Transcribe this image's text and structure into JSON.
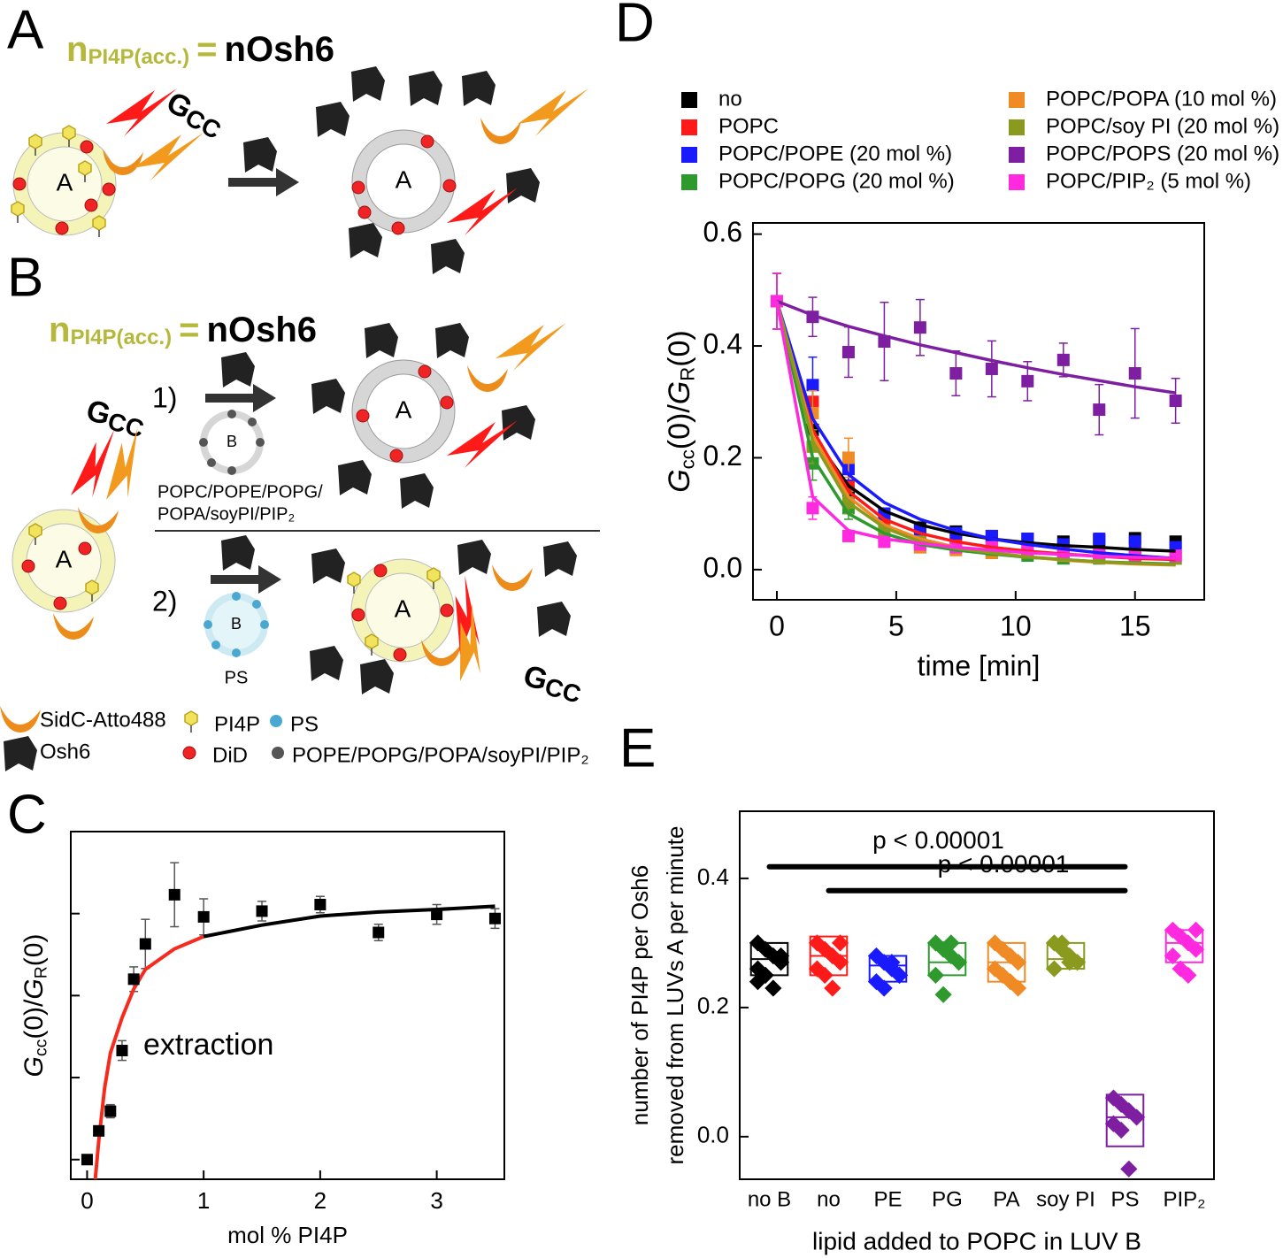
{
  "diagram": {
    "panel_labels": [
      "A",
      "B",
      "C",
      "D",
      "E"
    ],
    "equation": {
      "n": "n",
      "sub": "PI4P(acc.)",
      "eq": "=",
      "rhs": "nOsh6"
    },
    "gcc": {
      "g": "G",
      "sub": "CC"
    },
    "vesicle_a": "A",
    "vesicle_b": "B",
    "step_1": "1)",
    "step_2": "2)",
    "lipids_b": [
      "POPC/POPE/POPG/",
      "POPA/soyPI/PIP₂"
    ],
    "ps": "PS",
    "legend": [
      "SidC-Atto488",
      "Osh6",
      "PI4P",
      "PS",
      "DiD",
      "POPE/POPG/POPA/soyPI/PIP₂"
    ]
  },
  "chart_data": [
    {
      "type": "scatter",
      "xlabel": "mol % PI4P",
      "ylabel": {
        "g1": "G",
        "s1": "cc",
        "mid": "(0)/",
        "g2": "G",
        "s2": "R",
        "end": "(0)"
      },
      "xlim": [
        -0.14,
        3.58
      ],
      "ylim": [
        -0.024,
        0.4
      ],
      "xticks": [
        0,
        1,
        2,
        3
      ],
      "yticks": [
        0,
        0.1,
        0.2,
        0.3
      ],
      "ytick_labels": false,
      "x": [
        0,
        0.1,
        0.2,
        0.3,
        0.4,
        0.5,
        0.75,
        1,
        1.5,
        2,
        2.5,
        3,
        3.5
      ],
      "values": [
        0.0,
        0.035,
        0.059,
        0.133,
        0.22,
        0.263,
        0.323,
        0.296,
        0.303,
        0.311,
        0.277,
        0.299,
        0.294
      ],
      "errors": [
        0.003,
        0.004,
        0.008,
        0.012,
        0.015,
        0.03,
        0.039,
        0.022,
        0.012,
        0.01,
        0.01,
        0.012,
        0.012
      ],
      "color": "#000000",
      "fits": [
        {
          "color": "#f42b1d",
          "x": [
            0.07,
            0.1,
            0.15,
            0.2,
            0.3,
            0.4,
            0.5,
            0.75,
            1
          ],
          "values": [
            -0.024,
            0.023,
            0.087,
            0.13,
            0.173,
            0.208,
            0.232,
            0.257,
            0.272
          ]
        },
        {
          "color": "#000000",
          "x": [
            1,
            1.5,
            2,
            2.5,
            3,
            3.5
          ],
          "values": [
            0.272,
            0.286,
            0.297,
            0.302,
            0.305,
            0.309
          ]
        }
      ],
      "annotation": {
        "text": "extraction",
        "color": "#f42b1d"
      }
    },
    {
      "type": "line",
      "xlabel": "time [min]",
      "ylabel": {
        "g1": "G",
        "s1": "cc",
        "mid": "(0)/",
        "g2": "G",
        "s2": "R",
        "end": "(0)"
      },
      "xlim": [
        -1,
        17.9
      ],
      "ylim": [
        -0.054,
        0.62
      ],
      "xticks": [
        0,
        5,
        10,
        15
      ],
      "yticks": [
        {
          "value": 0,
          "label": "0.0"
        },
        0.2,
        0.4,
        0.6
      ],
      "x": [
        0,
        1.5,
        3,
        4.5,
        6,
        7.5,
        9,
        10.5,
        12,
        13.5,
        15,
        16.7
      ],
      "series": [
        {
          "name": "no",
          "color": "#000000",
          "values": [
            0.48,
            0.25,
            0.14,
            0.1,
            0.075,
            0.068,
            0.06,
            0.055,
            0.05,
            0.052,
            0.056,
            0.05
          ],
          "errors": [
            0.05,
            0.03,
            0.02,
            0.01,
            0.01,
            0.008,
            0.008,
            0.008,
            0.008,
            0.01,
            0.01,
            0.008
          ],
          "fit": [
            0.48,
            0.24,
            0.15,
            0.105,
            0.08,
            0.065,
            0.055,
            0.048,
            0.043,
            0.04,
            0.036,
            0.033
          ]
        },
        {
          "name": "POPC",
          "color": "#ff1a1a",
          "values": [
            0.48,
            0.3,
            0.15,
            0.08,
            0.05,
            0.045,
            0.04,
            0.04,
            0.03,
            0.03,
            0.03,
            0.03
          ],
          "errors": [
            0.05,
            0.03,
            0.02,
            0.01,
            0.008,
            0.008,
            0.008,
            0.008,
            0.006,
            0.006,
            0.006,
            0.006
          ],
          "fit": [
            0.48,
            0.25,
            0.14,
            0.09,
            0.065,
            0.05,
            0.04,
            0.033,
            0.028,
            0.024,
            0.02,
            0.018
          ]
        },
        {
          "name": "POPC/POPE (20 mol %)",
          "color": "#1a1aff",
          "values": [
            0.48,
            0.33,
            0.18,
            0.1,
            0.07,
            0.065,
            0.06,
            0.055,
            0.045,
            0.055,
            0.05,
            0.04
          ],
          "errors": [
            0.05,
            0.05,
            0.02,
            0.01,
            0.01,
            0.008,
            0.008,
            0.008,
            0.008,
            0.01,
            0.01,
            0.008
          ],
          "fit": [
            0.48,
            0.27,
            0.17,
            0.12,
            0.09,
            0.07,
            0.055,
            0.045,
            0.037,
            0.03,
            0.025,
            0.02
          ]
        },
        {
          "name": "POPC/POPG (20 mol %)",
          "color": "#2e9a2e",
          "values": [
            0.48,
            0.19,
            0.11,
            0.06,
            0.04,
            0.04,
            0.03,
            0.025,
            0.02,
            0.02,
            0.02,
            0.02
          ],
          "errors": [
            0.05,
            0.03,
            0.02,
            0.01,
            0.008,
            0.006,
            0.006,
            0.006,
            0.006,
            0.006,
            0.006,
            0.006
          ],
          "fit": [
            0.48,
            0.2,
            0.1,
            0.065,
            0.045,
            0.035,
            0.028,
            0.022,
            0.018,
            0.014,
            0.012,
            0.01
          ]
        },
        {
          "name": "POPC/POPA (10 mol %)",
          "color": "#f08a24",
          "values": [
            0.48,
            0.28,
            0.2,
            0.05,
            0.04,
            0.035,
            0.03,
            0.03,
            0.025,
            0.025,
            0.02,
            0.02
          ],
          "errors": [
            0.05,
            0.04,
            0.035,
            0.01,
            0.008,
            0.006,
            0.006,
            0.006,
            0.006,
            0.006,
            0.006,
            0.006
          ],
          "fit": [
            0.48,
            0.24,
            0.13,
            0.08,
            0.055,
            0.04,
            0.03,
            0.023,
            0.017,
            0.013,
            0.01,
            0.008
          ]
        },
        {
          "name": "POPC/soy PI (20 mol %)",
          "color": "#8a9a1e",
          "values": [
            0.48,
            0.22,
            0.12,
            0.07,
            0.05,
            0.04,
            0.035,
            0.03,
            0.025,
            0.025,
            0.02,
            0.02
          ],
          "errors": [
            0.05,
            0.03,
            0.02,
            0.01,
            0.008,
            0.006,
            0.006,
            0.006,
            0.006,
            0.006,
            0.006,
            0.006
          ],
          "fit": [
            0.48,
            0.23,
            0.12,
            0.075,
            0.05,
            0.038,
            0.03,
            0.023,
            0.018,
            0.014,
            0.011,
            0.009
          ]
        },
        {
          "name": "POPC/POPS (20 mol %)",
          "color": "#7d1fa0",
          "values": [
            0.48,
            0.452,
            0.389,
            0.408,
            0.433,
            0.351,
            0.359,
            0.337,
            0.375,
            0.286,
            0.351,
            0.302
          ],
          "errors": [
            0.05,
            0.035,
            0.045,
            0.07,
            0.05,
            0.04,
            0.05,
            0.035,
            0.03,
            0.045,
            0.08,
            0.04
          ],
          "fit": [
            0.48,
            0.455,
            0.435,
            0.418,
            0.402,
            0.388,
            0.374,
            0.361,
            0.349,
            0.338,
            0.327,
            0.316
          ]
        },
        {
          "name": "POPC/PIP₂ (5 mol %)",
          "color": "#ff2ae0",
          "values": [
            0.48,
            0.11,
            0.06,
            0.05,
            0.045,
            0.04,
            0.04,
            0.035,
            0.03,
            0.03,
            0.025,
            0.025
          ],
          "errors": [
            0.05,
            0.02,
            0.008,
            0.006,
            0.006,
            0.006,
            0.006,
            0.006,
            0.006,
            0.006,
            0.006,
            0.006
          ],
          "fit": [
            0.48,
            0.13,
            0.07,
            0.055,
            0.047,
            0.04,
            0.035,
            0.03,
            0.027,
            0.024,
            0.022,
            0.02
          ]
        }
      ]
    },
    {
      "type": "box",
      "xlabel": "lipid added to POPC in LUV B",
      "ylabel": [
        "number of PI4P per Osh6",
        "removed from LUVs A per minute"
      ],
      "ylim": [
        -0.066,
        0.504
      ],
      "yticks": [
        {
          "value": 0,
          "label": "0.0"
        },
        0.2,
        0.4
      ],
      "categories": [
        "no B",
        "no",
        "PE",
        "PG",
        "PA",
        "soy PI",
        "PS",
        "PIP₂"
      ],
      "boxes": [
        {
          "color": "#000000",
          "values": [
            0.3,
            0.29,
            0.28,
            0.27,
            0.26,
            0.25,
            0.23,
            0.28,
            0.24
          ],
          "q1": 0.25,
          "median": 0.275,
          "q3": 0.3
        },
        {
          "color": "#ff1a1a",
          "values": [
            0.3,
            0.29,
            0.28,
            0.3,
            0.26,
            0.25,
            0.23,
            0.27
          ],
          "q1": 0.25,
          "median": 0.28,
          "q3": 0.31
        },
        {
          "color": "#1a1aff",
          "values": [
            0.28,
            0.27,
            0.26,
            0.25,
            0.24,
            0.23,
            0.27,
            0.25
          ],
          "q1": 0.24,
          "median": 0.265,
          "q3": 0.28
        },
        {
          "color": "#2e9a2e",
          "values": [
            0.3,
            0.29,
            0.28,
            0.27,
            0.25,
            0.22,
            0.3
          ],
          "q1": 0.25,
          "median": 0.27,
          "q3": 0.3
        },
        {
          "color": "#f08a24",
          "values": [
            0.3,
            0.29,
            0.28,
            0.27,
            0.26,
            0.25,
            0.24,
            0.23
          ],
          "q1": 0.24,
          "median": 0.27,
          "q3": 0.3
        },
        {
          "color": "#8a9a1e",
          "values": [
            0.3,
            0.29,
            0.28,
            0.27,
            0.26,
            0.3,
            0.27
          ],
          "q1": 0.26,
          "median": 0.275,
          "q3": 0.3
        },
        {
          "color": "#7d1fa0",
          "values": [
            0.06,
            0.05,
            0.04,
            0.03,
            0.02,
            0.01,
            -0.05
          ],
          "q1": -0.015,
          "median": 0.03,
          "q3": 0.065
        },
        {
          "color": "#ff2ae0",
          "values": [
            0.32,
            0.31,
            0.3,
            0.29,
            0.28,
            0.26,
            0.25,
            0.32
          ],
          "q1": 0.27,
          "median": 0.3,
          "q3": 0.32
        }
      ],
      "brackets": [
        {
          "label": "p < 0.00001",
          "from": 0,
          "to": 6,
          "y": 0.418
        },
        {
          "label": "p < 0.00001",
          "from": 1,
          "to": 6,
          "y": 0.381
        }
      ]
    }
  ]
}
